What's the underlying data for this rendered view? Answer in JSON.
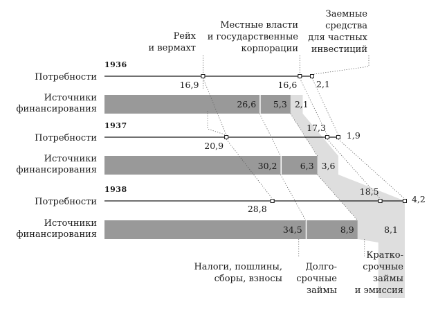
{
  "chart_data": {
    "type": "bar",
    "years": [
      "1936",
      "1937",
      "1938"
    ],
    "row_labels": {
      "needs": "Потребности",
      "sources": [
        "Источники",
        "финансирования"
      ]
    },
    "needs": [
      {
        "year": "1936",
        "reich_wehrmacht": 16.9,
        "local_state": 16.6,
        "private": 2.1
      },
      {
        "year": "1937",
        "reich_wehrmacht": 20.9,
        "local_state": 17.3,
        "private": 1.9
      },
      {
        "year": "1938",
        "reich_wehrmacht": 28.8,
        "local_state": 18.5,
        "private": 4.2
      }
    ],
    "sources": [
      {
        "year": "1936",
        "taxes": 26.6,
        "long_term_loans": 5.3,
        "short_term_emission": 2.1
      },
      {
        "year": "1937",
        "taxes": 30.2,
        "long_term_loans": 6.3,
        "short_term_emission": 3.6
      },
      {
        "year": "1938",
        "taxes": 34.5,
        "long_term_loans": 8.9,
        "short_term_emission": 8.1
      }
    ],
    "value_labels": {
      "needs": [
        [
          "16,9",
          "16,6",
          "2,1"
        ],
        [
          "20,9",
          "17,3",
          "1,9"
        ],
        [
          "28,8",
          "18,5",
          "4,2"
        ]
      ],
      "sources": [
        [
          "26,6",
          "5,3",
          "2,1"
        ],
        [
          "30,2",
          "6,3",
          "3,6"
        ],
        [
          "34,5",
          "8,9",
          "8,1"
        ]
      ]
    },
    "annotations": {
      "reich": [
        "Рейх",
        "и вермахт"
      ],
      "local": [
        "Местные власти",
        "и государственные",
        "корпорации"
      ],
      "private": [
        "Заемные",
        "средства",
        "для частных",
        "инвестиций"
      ],
      "taxes": [
        "Налоги, пошлины,",
        "сборы, взносы"
      ],
      "long_loans": [
        "Долго-",
        "срочные",
        "займы"
      ],
      "short_loans": [
        "Кратко-",
        "срочные",
        "займы",
        "и эмиссия"
      ]
    },
    "colors": {
      "bar": "#999999",
      "short_term_band": "#dedede",
      "line": "#1a1a1a",
      "leader": "#555555"
    }
  }
}
